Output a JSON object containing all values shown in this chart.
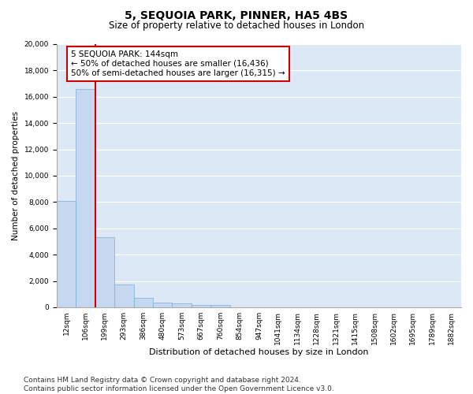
{
  "title": "5, SEQUOIA PARK, PINNER, HA5 4BS",
  "subtitle": "Size of property relative to detached houses in London",
  "xlabel": "Distribution of detached houses by size in London",
  "ylabel": "Number of detached properties",
  "categories": [
    "12sqm",
    "106sqm",
    "199sqm",
    "293sqm",
    "386sqm",
    "480sqm",
    "573sqm",
    "667sqm",
    "760sqm",
    "854sqm",
    "947sqm",
    "1041sqm",
    "1134sqm",
    "1228sqm",
    "1321sqm",
    "1415sqm",
    "1508sqm",
    "1602sqm",
    "1695sqm",
    "1789sqm",
    "1882sqm"
  ],
  "values": [
    8100,
    16600,
    5300,
    1750,
    700,
    350,
    270,
    200,
    180,
    0,
    0,
    0,
    0,
    0,
    0,
    0,
    0,
    0,
    0,
    0,
    0
  ],
  "bar_color": "#c5d8f0",
  "bar_edge_color": "#7aadd4",
  "vline_x": 1.5,
  "vline_color": "#cc0000",
  "annotation_text": "5 SEQUOIA PARK: 144sqm\n← 50% of detached houses are smaller (16,436)\n50% of semi-detached houses are larger (16,315) →",
  "annotation_box_color": "#ffffff",
  "annotation_box_edge": "#cc0000",
  "ylim": [
    0,
    20000
  ],
  "yticks": [
    0,
    2000,
    4000,
    6000,
    8000,
    10000,
    12000,
    14000,
    16000,
    18000,
    20000
  ],
  "bg_color": "#dce8f5",
  "footer": "Contains HM Land Registry data © Crown copyright and database right 2024.\nContains public sector information licensed under the Open Government Licence v3.0.",
  "title_fontsize": 10,
  "subtitle_fontsize": 8.5,
  "xlabel_fontsize": 8,
  "ylabel_fontsize": 7.5,
  "tick_fontsize": 6.5,
  "footer_fontsize": 6.5,
  "ann_fontsize": 7.5
}
